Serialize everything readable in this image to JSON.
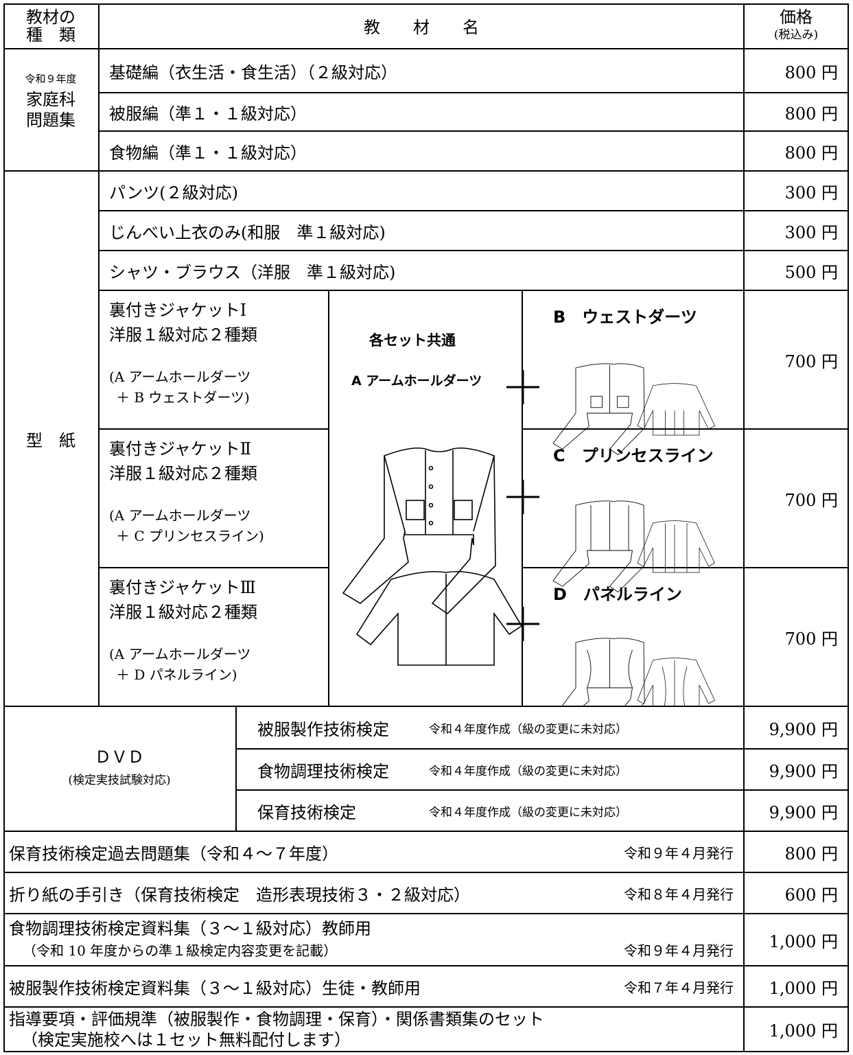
{
  "header": {
    "type": [
      "教材の",
      "種　類"
    ],
    "name": "教　　材　　名",
    "price": [
      "価格",
      "(税込み)"
    ]
  },
  "workbook": {
    "label": [
      "令和９年度",
      "家庭科",
      "問題集"
    ],
    "items": [
      {
        "name": "基礎編（衣生活・食生活）（２級対応）",
        "price": "800 円"
      },
      {
        "name": "被服編（準１・１級対応）",
        "price": "800 円"
      },
      {
        "name": "食物編（準１・１級対応）",
        "price": "800 円"
      }
    ]
  },
  "patterns": {
    "label": "型　紙",
    "items": [
      {
        "name": "パンツ(２級対応)",
        "price": "300 円"
      },
      {
        "name": "じんべい上衣のみ(和服　準１級対応)",
        "price": "300 円"
      },
      {
        "name": "シャツ・ブラウス（洋服　準１級対応)",
        "price": "500 円"
      }
    ],
    "common": [
      "各セット共通",
      "A アームホールダーツ"
    ],
    "jackets": [
      {
        "lines": [
          "裏付きジャケットⅠ",
          "洋服１級対応２種類",
          "(A アームホールダーツ",
          "＋ B ウェストダーツ)"
        ],
        "variant": "B　ウェストダーツ",
        "price": "700 円"
      },
      {
        "lines": [
          "裏付きジャケットⅡ",
          "洋服１級対応２種類",
          "(A アームホールダーツ",
          "＋ C プリンセスライン)"
        ],
        "variant": "C　プリンセスライン",
        "price": "700 円"
      },
      {
        "lines": [
          "裏付きジャケットⅢ",
          "洋服１級対応２種類",
          "(A アームホールダーツ",
          "＋ D パネルライン)"
        ],
        "variant": "D　パネルライン",
        "price": "700 円"
      }
    ]
  },
  "dvd": {
    "label": [
      "ＤＶＤ",
      "(検定実技試験対応)"
    ],
    "items": [
      {
        "name": "被服製作技術検定",
        "note": "令和４年度作成（級の変更に未対応）",
        "price": "9,900 円"
      },
      {
        "name": "食物調理技術検定",
        "note": "令和４年度作成（級の変更に未対応）",
        "price": "9,900 円"
      },
      {
        "name": "保育技術検定",
        "note": "令和４年度作成（級の変更に未対応）",
        "price": "9,900 円"
      }
    ]
  },
  "others": [
    {
      "lines": [
        "保育技術検定過去問題集（令和４～７年度）"
      ],
      "issued": "令和９年４月発行",
      "price": "800 円"
    },
    {
      "lines": [
        "折り紙の手引き（保育技術検定　造形表現技術３・２級対応）"
      ],
      "issued": "令和８年４月発行",
      "price": "600 円"
    },
    {
      "lines": [
        "食物調理技術検定資料集（３～１級対応）教師用",
        "（令和 10 年度からの準１級検定内容変更を記載）"
      ],
      "issued": "令和９年４月発行",
      "price": "1,000 円"
    },
    {
      "lines": [
        "被服製作技術検定資料集（３～１級対応）生徒・教師用"
      ],
      "issued": "令和７年４月発行",
      "price": "1,000 円"
    },
    {
      "lines": [
        "指導要項・評価規準（被服製作・食物調理・保育）・関係書類集のセット",
        "（検定実施校へは１セット無料配付します）"
      ],
      "price": "1,000 円"
    }
  ]
}
